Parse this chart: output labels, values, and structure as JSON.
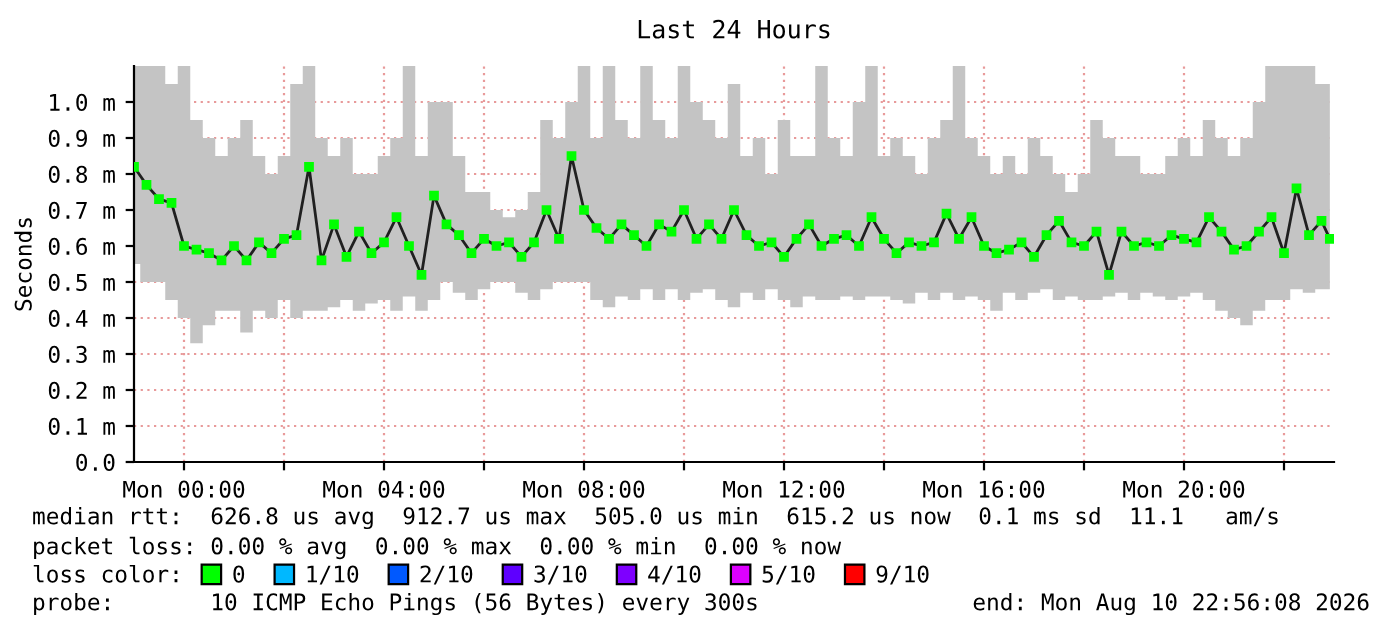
{
  "chart_data": {
    "type": "line",
    "title": "Last 24 Hours",
    "ylabel": "Seconds",
    "x": [
      "2026-08-09T23:00",
      "2026-08-09T23:15",
      "2026-08-09T23:30",
      "2026-08-09T23:45",
      "2026-08-10T00:00",
      "2026-08-10T00:15",
      "2026-08-10T00:30",
      "2026-08-10T00:45",
      "2026-08-10T01:00",
      "2026-08-10T01:15",
      "2026-08-10T01:30",
      "2026-08-10T01:45",
      "2026-08-10T02:00",
      "2026-08-10T02:15",
      "2026-08-10T02:30",
      "2026-08-10T02:45",
      "2026-08-10T03:00",
      "2026-08-10T03:15",
      "2026-08-10T03:30",
      "2026-08-10T03:45",
      "2026-08-10T04:00",
      "2026-08-10T04:15",
      "2026-08-10T04:30",
      "2026-08-10T04:45",
      "2026-08-10T05:00",
      "2026-08-10T05:15",
      "2026-08-10T05:30",
      "2026-08-10T05:45",
      "2026-08-10T06:00",
      "2026-08-10T06:15",
      "2026-08-10T06:30",
      "2026-08-10T06:45",
      "2026-08-10T07:00",
      "2026-08-10T07:15",
      "2026-08-10T07:30",
      "2026-08-10T07:45",
      "2026-08-10T08:00",
      "2026-08-10T08:15",
      "2026-08-10T08:30",
      "2026-08-10T08:45",
      "2026-08-10T09:00",
      "2026-08-10T09:15",
      "2026-08-10T09:30",
      "2026-08-10T09:45",
      "2026-08-10T10:00",
      "2026-08-10T10:15",
      "2026-08-10T10:30",
      "2026-08-10T10:45",
      "2026-08-10T11:00",
      "2026-08-10T11:15",
      "2026-08-10T11:30",
      "2026-08-10T11:45",
      "2026-08-10T12:00",
      "2026-08-10T12:15",
      "2026-08-10T12:30",
      "2026-08-10T12:45",
      "2026-08-10T13:00",
      "2026-08-10T13:15",
      "2026-08-10T13:30",
      "2026-08-10T13:45",
      "2026-08-10T14:00",
      "2026-08-10T14:15",
      "2026-08-10T14:30",
      "2026-08-10T14:45",
      "2026-08-10T15:00",
      "2026-08-10T15:15",
      "2026-08-10T15:30",
      "2026-08-10T15:45",
      "2026-08-10T16:00",
      "2026-08-10T16:15",
      "2026-08-10T16:30",
      "2026-08-10T16:45",
      "2026-08-10T17:00",
      "2026-08-10T17:15",
      "2026-08-10T17:30",
      "2026-08-10T17:45",
      "2026-08-10T18:00",
      "2026-08-10T18:15",
      "2026-08-10T18:30",
      "2026-08-10T18:45",
      "2026-08-10T19:00",
      "2026-08-10T19:15",
      "2026-08-10T19:30",
      "2026-08-10T19:45",
      "2026-08-10T20:00",
      "2026-08-10T20:15",
      "2026-08-10T20:30",
      "2026-08-10T20:45",
      "2026-08-10T21:00",
      "2026-08-10T21:15",
      "2026-08-10T21:30",
      "2026-08-10T21:45",
      "2026-08-10T22:00",
      "2026-08-10T22:15",
      "2026-08-10T22:30",
      "2026-08-10T22:45",
      "2026-08-10T22:55"
    ],
    "series": [
      {
        "name": "0",
        "color": "#00ff00",
        "marker": "square",
        "values": [
          0.82,
          0.77,
          0.73,
          0.72,
          0.6,
          0.59,
          0.58,
          0.56,
          0.6,
          0.56,
          0.61,
          0.58,
          0.62,
          0.63,
          0.82,
          0.56,
          0.66,
          0.57,
          0.64,
          0.58,
          0.61,
          0.68,
          0.6,
          0.52,
          0.74,
          0.66,
          0.63,
          0.58,
          0.62,
          0.6,
          0.61,
          0.57,
          0.61,
          0.7,
          0.62,
          0.85,
          0.7,
          0.65,
          0.62,
          0.66,
          0.63,
          0.6,
          0.66,
          0.64,
          0.7,
          0.62,
          0.66,
          0.62,
          0.7,
          0.63,
          0.6,
          0.61,
          0.57,
          0.62,
          0.66,
          0.6,
          0.62,
          0.63,
          0.6,
          0.68,
          0.62,
          0.58,
          0.61,
          0.6,
          0.61,
          0.69,
          0.62,
          0.68,
          0.6,
          0.58,
          0.59,
          0.61,
          0.57,
          0.63,
          0.67,
          0.61,
          0.6,
          0.64,
          0.52,
          0.64,
          0.6,
          0.61,
          0.6,
          0.63,
          0.62,
          0.61,
          0.68,
          0.64,
          0.59,
          0.6,
          0.64,
          0.68,
          0.58,
          0.76,
          0.63,
          0.67,
          0.62
        ],
        "lower": [
          0.55,
          0.5,
          0.5,
          0.45,
          0.4,
          0.33,
          0.38,
          0.42,
          0.42,
          0.36,
          0.42,
          0.4,
          0.45,
          0.4,
          0.42,
          0.42,
          0.43,
          0.45,
          0.42,
          0.44,
          0.45,
          0.42,
          0.46,
          0.42,
          0.45,
          0.5,
          0.47,
          0.45,
          0.48,
          0.5,
          0.5,
          0.47,
          0.45,
          0.48,
          0.5,
          0.5,
          0.5,
          0.45,
          0.43,
          0.46,
          0.45,
          0.48,
          0.45,
          0.48,
          0.45,
          0.47,
          0.48,
          0.45,
          0.43,
          0.47,
          0.45,
          0.48,
          0.45,
          0.43,
          0.46,
          0.45,
          0.45,
          0.46,
          0.45,
          0.46,
          0.46,
          0.45,
          0.44,
          0.47,
          0.45,
          0.47,
          0.45,
          0.46,
          0.45,
          0.42,
          0.47,
          0.45,
          0.47,
          0.48,
          0.45,
          0.46,
          0.45,
          0.45,
          0.46,
          0.47,
          0.45,
          0.47,
          0.46,
          0.45,
          0.46,
          0.47,
          0.45,
          0.42,
          0.4,
          0.38,
          0.42,
          0.45,
          0.45,
          0.48,
          0.47,
          0.48,
          0.48
        ],
        "upper": [
          1.1,
          1.1,
          1.1,
          1.05,
          1.1,
          0.95,
          0.9,
          0.85,
          0.9,
          0.95,
          0.85,
          0.8,
          0.85,
          1.05,
          1.1,
          0.9,
          0.85,
          0.9,
          0.8,
          0.8,
          0.85,
          0.9,
          1.1,
          0.85,
          1.0,
          1.0,
          0.85,
          0.75,
          0.75,
          0.7,
          0.68,
          0.7,
          0.75,
          0.95,
          0.9,
          1.0,
          1.1,
          0.9,
          1.1,
          0.95,
          0.9,
          1.1,
          0.95,
          0.9,
          1.1,
          1.0,
          0.95,
          0.9,
          1.05,
          0.85,
          0.9,
          0.8,
          0.95,
          0.85,
          0.85,
          1.1,
          0.9,
          0.85,
          1.0,
          1.1,
          0.85,
          0.9,
          0.85,
          0.8,
          0.9,
          0.95,
          1.1,
          0.9,
          0.85,
          0.8,
          0.85,
          0.8,
          0.9,
          0.85,
          0.8,
          0.75,
          0.8,
          0.95,
          0.9,
          0.85,
          0.85,
          0.8,
          0.8,
          0.85,
          0.9,
          0.85,
          0.95,
          0.9,
          0.85,
          0.9,
          1.0,
          1.1,
          1.1,
          1.1,
          1.1,
          1.05,
          1.05
        ]
      },
      {
        "name": "1/10",
        "color": "#00b8ff",
        "values": [
          null,
          null,
          null,
          null,
          null,
          null,
          null,
          null,
          null,
          null,
          null,
          null,
          null,
          null,
          null,
          null,
          null,
          null,
          null,
          null,
          null,
          null,
          null,
          null,
          null,
          null,
          null,
          null,
          null,
          null,
          null,
          null,
          null,
          null,
          null,
          null,
          null,
          null,
          null,
          null,
          null,
          null,
          null,
          null,
          null,
          null,
          null,
          null,
          null,
          null,
          null,
          null,
          null,
          null,
          null,
          null,
          null,
          null,
          null,
          null,
          null,
          null,
          null,
          null,
          null,
          null,
          null,
          null,
          null,
          null,
          null,
          null,
          null,
          null,
          null,
          null,
          null,
          null,
          null,
          null,
          null,
          null,
          null,
          null,
          null,
          null,
          null,
          null,
          null,
          null,
          null,
          null,
          null,
          null,
          null,
          null,
          null
        ]
      },
      {
        "name": "2/10",
        "color": "#0059ff",
        "values": [
          null,
          null,
          null,
          null,
          null,
          null,
          null,
          null,
          null,
          null,
          null,
          null,
          null,
          null,
          null,
          null,
          null,
          null,
          null,
          null,
          null,
          null,
          null,
          null,
          null,
          null,
          null,
          null,
          null,
          null,
          null,
          null,
          null,
          null,
          null,
          null,
          null,
          null,
          null,
          null,
          null,
          null,
          null,
          null,
          null,
          null,
          null,
          null,
          null,
          null,
          null,
          null,
          null,
          null,
          null,
          null,
          null,
          null,
          null,
          null,
          null,
          null,
          null,
          null,
          null,
          null,
          null,
          null,
          null,
          null,
          null,
          null,
          null,
          null,
          null,
          null,
          null,
          null,
          null,
          null,
          null,
          null,
          null,
          null,
          null,
          null,
          null,
          null,
          null,
          null,
          null,
          null,
          null,
          null,
          null,
          null,
          null
        ]
      },
      {
        "name": "3/10",
        "color": "#5e00ff",
        "values": [
          null,
          null,
          null,
          null,
          null,
          null,
          null,
          null,
          null,
          null,
          null,
          null,
          null,
          null,
          null,
          null,
          null,
          null,
          null,
          null,
          null,
          null,
          null,
          null,
          null,
          null,
          null,
          null,
          null,
          null,
          null,
          null,
          null,
          null,
          null,
          null,
          null,
          null,
          null,
          null,
          null,
          null,
          null,
          null,
          null,
          null,
          null,
          null,
          null,
          null,
          null,
          null,
          null,
          null,
          null,
          null,
          null,
          null,
          null,
          null,
          null,
          null,
          null,
          null,
          null,
          null,
          null,
          null,
          null,
          null,
          null,
          null,
          null,
          null,
          null,
          null,
          null,
          null,
          null,
          null,
          null,
          null,
          null,
          null,
          null,
          null,
          null,
          null,
          null,
          null,
          null,
          null,
          null,
          null,
          null,
          null,
          null
        ]
      },
      {
        "name": "4/10",
        "color": "#7e00ff",
        "values": [
          null,
          null,
          null,
          null,
          null,
          null,
          null,
          null,
          null,
          null,
          null,
          null,
          null,
          null,
          null,
          null,
          null,
          null,
          null,
          null,
          null,
          null,
          null,
          null,
          null,
          null,
          null,
          null,
          null,
          null,
          null,
          null,
          null,
          null,
          null,
          null,
          null,
          null,
          null,
          null,
          null,
          null,
          null,
          null,
          null,
          null,
          null,
          null,
          null,
          null,
          null,
          null,
          null,
          null,
          null,
          null,
          null,
          null,
          null,
          null,
          null,
          null,
          null,
          null,
          null,
          null,
          null,
          null,
          null,
          null,
          null,
          null,
          null,
          null,
          null,
          null,
          null,
          null,
          null,
          null,
          null,
          null,
          null,
          null,
          null,
          null,
          null,
          null,
          null,
          null,
          null,
          null,
          null,
          null,
          null,
          null,
          null
        ]
      },
      {
        "name": "5/10",
        "color": "#dd00ff",
        "values": [
          null,
          null,
          null,
          null,
          null,
          null,
          null,
          null,
          null,
          null,
          null,
          null,
          null,
          null,
          null,
          null,
          null,
          null,
          null,
          null,
          null,
          null,
          null,
          null,
          null,
          null,
          null,
          null,
          null,
          null,
          null,
          null,
          null,
          null,
          null,
          null,
          null,
          null,
          null,
          null,
          null,
          null,
          null,
          null,
          null,
          null,
          null,
          null,
          null,
          null,
          null,
          null,
          null,
          null,
          null,
          null,
          null,
          null,
          null,
          null,
          null,
          null,
          null,
          null,
          null,
          null,
          null,
          null,
          null,
          null,
          null,
          null,
          null,
          null,
          null,
          null,
          null,
          null,
          null,
          null,
          null,
          null,
          null,
          null,
          null,
          null,
          null,
          null,
          null,
          null,
          null,
          null,
          null,
          null,
          null,
          null,
          null
        ]
      },
      {
        "name": "9/10",
        "color": "#ff0000",
        "values": [
          null,
          null,
          null,
          null,
          null,
          null,
          null,
          null,
          null,
          null,
          null,
          null,
          null,
          null,
          null,
          null,
          null,
          null,
          null,
          null,
          null,
          null,
          null,
          null,
          null,
          null,
          null,
          null,
          null,
          null,
          null,
          null,
          null,
          null,
          null,
          null,
          null,
          null,
          null,
          null,
          null,
          null,
          null,
          null,
          null,
          null,
          null,
          null,
          null,
          null,
          null,
          null,
          null,
          null,
          null,
          null,
          null,
          null,
          null,
          null,
          null,
          null,
          null,
          null,
          null,
          null,
          null,
          null,
          null,
          null,
          null,
          null,
          null,
          null,
          null,
          null,
          null,
          null,
          null,
          null,
          null,
          null,
          null,
          null,
          null,
          null,
          null,
          null,
          null,
          null,
          null,
          null,
          null,
          null,
          null,
          null,
          null
        ]
      }
    ],
    "legend": "bottom",
    "legend_title": "loss color:",
    "xlim": [
      "2026-08-09T23:00",
      "2026-08-10T23:00"
    ],
    "xticks": [
      {
        "value": "2026-08-10T00:00",
        "label": "Mon 00:00"
      },
      {
        "value": "2026-08-10T02:00",
        "label": null
      },
      {
        "value": "2026-08-10T04:00",
        "label": "Mon 04:00"
      },
      {
        "value": "2026-08-10T06:00",
        "label": null
      },
      {
        "value": "2026-08-10T08:00",
        "label": "Mon 08:00"
      },
      {
        "value": "2026-08-10T10:00",
        "label": null
      },
      {
        "value": "2026-08-10T12:00",
        "label": "Mon 12:00"
      },
      {
        "value": "2026-08-10T14:00",
        "label": null
      },
      {
        "value": "2026-08-10T16:00",
        "label": "Mon 16:00"
      },
      {
        "value": "2026-08-10T18:00",
        "label": null
      },
      {
        "value": "2026-08-10T20:00",
        "label": "Mon 20:00"
      },
      {
        "value": "2026-08-10T22:00",
        "label": null
      }
    ],
    "ylim": [
      0,
      1.1
    ],
    "yticks": [
      {
        "value": 0,
        "label": "0.0"
      },
      {
        "value": 0.1,
        "label": "0.1 m"
      },
      {
        "value": 0.2,
        "label": "0.2 m"
      },
      {
        "value": 0.3,
        "label": "0.3 m"
      },
      {
        "value": 0.4,
        "label": "0.4 m"
      },
      {
        "value": 0.5,
        "label": "0.5 m"
      },
      {
        "value": 0.6,
        "label": "0.6 m"
      },
      {
        "value": 0.7,
        "label": "0.7 m"
      },
      {
        "value": 0.8,
        "label": "0.8 m"
      },
      {
        "value": 0.9,
        "label": "0.9 m"
      },
      {
        "value": 1.0,
        "label": "1.0 m"
      }
    ],
    "grid": true,
    "annotations": [
      "median rtt:  626.8 us avg  912.7 us max  505.0 us min  615.2 us now  0.1 ms sd  11.1   am/s",
      "packet loss: 0.00 % avg  0.00 % max  0.00 % min  0.00 % now",
      "probe:       10 ICMP Echo Pings (56 Bytes) every 300s",
      "end: Mon Aug 10 22:56:08 2026"
    ]
  }
}
